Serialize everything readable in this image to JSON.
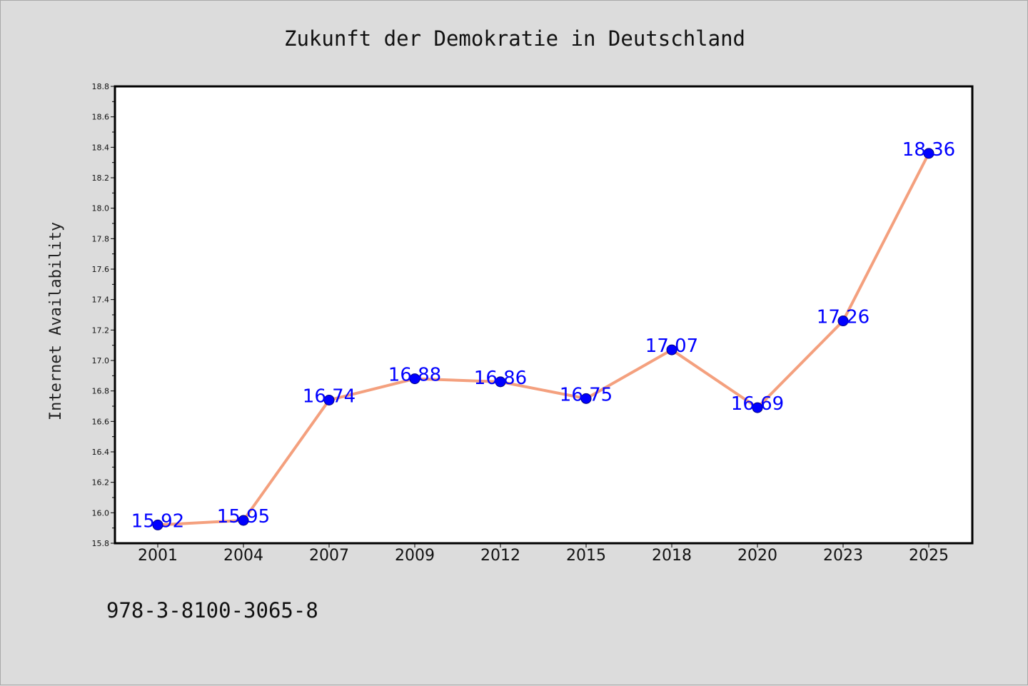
{
  "chart_data": {
    "type": "line",
    "title": "Zukunft der Demokratie in Deutschland",
    "xlabel": "",
    "ylabel": "Internet Availability",
    "categories": [
      "2001",
      "2004",
      "2007",
      "2009",
      "2012",
      "2015",
      "2018",
      "2020",
      "2023",
      "2025"
    ],
    "series": [
      {
        "name": "",
        "values": [
          15.92,
          15.95,
          16.74,
          16.88,
          16.86,
          16.75,
          17.07,
          16.69,
          17.26,
          18.36
        ],
        "data_labels": [
          "15.92",
          "15.95",
          "16.74",
          "16.88",
          "16.86",
          "16.75",
          "17.07",
          "16.69",
          "17.26",
          "18.36"
        ]
      }
    ],
    "ylim": [
      15.8,
      18.8
    ],
    "yticks": [
      "15.8",
      "16.0",
      "16.2",
      "16.4",
      "16.6",
      "16.8",
      "17.0",
      "17.2",
      "17.4",
      "17.6",
      "17.8",
      "18.0",
      "18.2",
      "18.4",
      "18.6",
      "18.8"
    ],
    "grid": false,
    "legend": "none",
    "colors": {
      "line": "#f4a07e",
      "marker": "#0000ff",
      "marker_edge": "#000080",
      "data_label": "#0000ff",
      "plot_background": "#ffffff",
      "figure_background": "#dcdcdc"
    }
  },
  "footer": {
    "isbn": "978-3-8100-3065-8"
  }
}
